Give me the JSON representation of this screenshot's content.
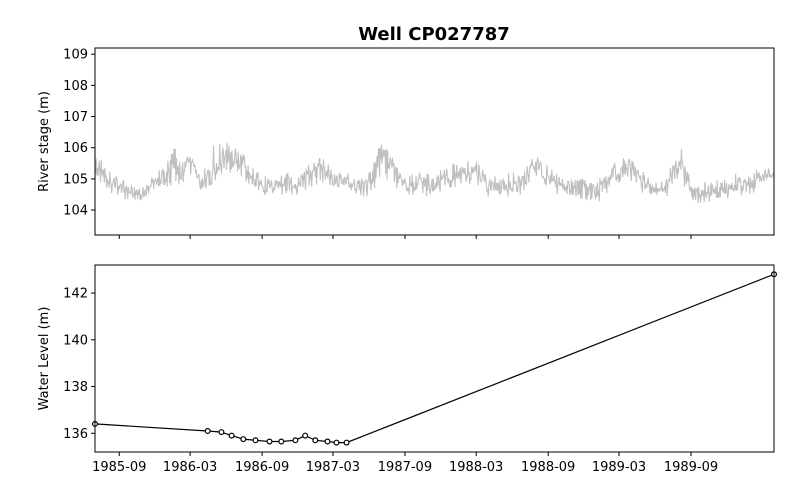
{
  "chart_data": [
    {
      "type": "line",
      "title": "Well CP027787",
      "xlabel": "",
      "ylabel": "River stage (m)",
      "ylim": [
        103.2,
        109.2
      ],
      "yticks": [
        104,
        105,
        106,
        107,
        108,
        109
      ],
      "xlim": [
        "1985-07-01",
        "1990-04-01"
      ],
      "grid": false,
      "series": [
        {
          "color": "#c0c0c0",
          "x": [
            "1985-07-01",
            "1985-08-01",
            "1985-09-01",
            "1985-10-01",
            "1985-11-01",
            "1985-12-01",
            "1986-01-01",
            "1986-02-01",
            "1986-03-01",
            "1986-04-01",
            "1986-05-01",
            "1986-06-01",
            "1986-07-01",
            "1986-08-01",
            "1986-09-01",
            "1986-10-01",
            "1986-11-01",
            "1986-12-01",
            "1987-01-01",
            "1987-02-01",
            "1987-03-01",
            "1987-04-01",
            "1987-05-01",
            "1987-06-01",
            "1987-07-01",
            "1987-08-01",
            "1987-09-01",
            "1987-10-01",
            "1987-11-01",
            "1987-12-01",
            "1988-01-01",
            "1988-02-01",
            "1988-03-01",
            "1988-04-01",
            "1988-05-01",
            "1988-06-01",
            "1988-07-01",
            "1988-08-01",
            "1988-09-01",
            "1988-10-01",
            "1988-11-01",
            "1988-12-01",
            "1989-01-01",
            "1989-02-01",
            "1989-03-01",
            "1989-04-01",
            "1989-05-01",
            "1989-06-01",
            "1989-07-01",
            "1989-08-01",
            "1989-09-01",
            "1989-10-01",
            "1989-11-01",
            "1989-12-01",
            "1990-01-01",
            "1990-02-01",
            "1990-03-01",
            "1990-04-01"
          ],
          "values": [
            105.6,
            105.0,
            104.8,
            104.6,
            104.5,
            104.9,
            105.2,
            105.3,
            105.5,
            104.8,
            105.4,
            105.8,
            105.6,
            105.1,
            104.8,
            104.7,
            104.9,
            104.8,
            105.2,
            105.4,
            104.9,
            104.9,
            104.8,
            104.8,
            105.8,
            105.3,
            104.8,
            104.9,
            104.8,
            104.9,
            105.1,
            105.2,
            105.2,
            104.8,
            104.8,
            104.8,
            104.9,
            105.5,
            105.0,
            104.8,
            104.8,
            104.7,
            104.6,
            104.9,
            105.3,
            105.4,
            104.9,
            104.7,
            104.7,
            105.7,
            104.6,
            104.5,
            104.6,
            104.7,
            104.8,
            104.9,
            105.0,
            105.2
          ],
          "min_band": [
            104.9,
            104.4,
            104.2,
            104.1,
            104.2,
            104.4,
            104.5,
            104.6,
            104.7,
            104.3,
            104.6,
            104.8,
            104.9,
            104.5,
            104.2,
            104.1,
            104.2,
            104.3,
            104.4,
            104.6,
            104.3,
            104.3,
            104.2,
            104.2,
            104.6,
            104.6,
            104.2,
            104.3,
            104.2,
            104.3,
            104.4,
            104.6,
            104.6,
            104.2,
            104.2,
            104.2,
            104.3,
            104.7,
            104.4,
            104.2,
            104.2,
            104.1,
            104.0,
            104.2,
            104.6,
            104.7,
            104.3,
            104.2,
            104.1,
            104.8,
            104.1,
            104.0,
            104.1,
            104.2,
            104.2,
            104.3,
            104.4,
            104.6
          ],
          "max_band": [
            106.0,
            105.6,
            105.3,
            105.0,
            104.9,
            105.4,
            105.8,
            106.8,
            106.0,
            105.3,
            106.6,
            106.4,
            106.2,
            105.8,
            105.3,
            105.2,
            105.4,
            105.3,
            105.8,
            106.0,
            105.4,
            105.4,
            105.3,
            105.4,
            106.4,
            106.0,
            105.4,
            105.5,
            105.4,
            105.5,
            105.7,
            105.8,
            105.8,
            105.3,
            105.4,
            105.4,
            105.5,
            106.0,
            105.7,
            105.3,
            105.3,
            105.2,
            105.1,
            105.5,
            105.9,
            106.1,
            105.5,
            105.3,
            105.2,
            106.5,
            105.2,
            105.1,
            105.2,
            105.3,
            105.4,
            105.5,
            105.5,
            105.5
          ]
        }
      ]
    },
    {
      "type": "line",
      "title": "",
      "xlabel": "",
      "ylabel": "Water Level (m)",
      "ylim": [
        135.2,
        143.2
      ],
      "yticks": [
        136,
        138,
        140,
        142
      ],
      "xlim": [
        "1985-07-01",
        "1990-04-01"
      ],
      "xticks": [
        "1985-09",
        "1986-03",
        "1986-09",
        "1987-03",
        "1987-09",
        "1988-03",
        "1988-09",
        "1989-03",
        "1989-09"
      ],
      "grid": false,
      "series": [
        {
          "color": "#000000",
          "marker": "circle",
          "x": [
            "1985-07-01",
            "1986-04-15",
            "1986-05-20",
            "1986-06-15",
            "1986-07-15",
            "1986-08-15",
            "1986-09-20",
            "1986-10-20",
            "1986-11-25",
            "1986-12-20",
            "1987-01-15",
            "1987-02-15",
            "1987-03-10",
            "1987-04-05",
            "1990-04-01"
          ],
          "values": [
            136.4,
            136.1,
            136.05,
            135.9,
            135.75,
            135.7,
            135.65,
            135.65,
            135.7,
            135.9,
            135.7,
            135.65,
            135.6,
            135.6,
            142.8
          ]
        }
      ]
    }
  ]
}
